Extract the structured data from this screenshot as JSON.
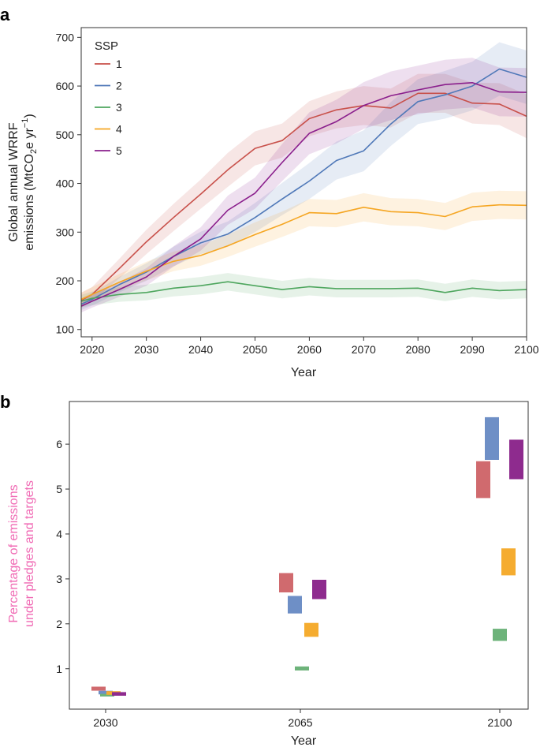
{
  "figure": {
    "panel_a": "a",
    "panel_b": "b"
  },
  "chart_data": [
    {
      "type": "line",
      "panel": "a",
      "title": "",
      "xlabel": "Year",
      "ylabel_line1": "Global annual WRRF",
      "ylabel_line2_pre": "emissions (MtCO",
      "ylabel_sub": "2",
      "ylabel_line2_mid": "e yr",
      "ylabel_sup": "−1",
      "ylabel_line2_post": ")",
      "xlim": [
        2018,
        2100
      ],
      "ylim": [
        85,
        720
      ],
      "xticks": [
        2020,
        2030,
        2040,
        2050,
        2060,
        2070,
        2080,
        2090,
        2100
      ],
      "yticks": [
        100,
        200,
        300,
        400,
        500,
        600,
        700
      ],
      "legend": {
        "title": "SSP",
        "placement": "top-left"
      },
      "x": [
        2018,
        2020,
        2025,
        2030,
        2035,
        2040,
        2045,
        2050,
        2055,
        2060,
        2065,
        2070,
        2075,
        2080,
        2085,
        2090,
        2095,
        2100
      ],
      "series": [
        {
          "name": "1",
          "color": "#c8504a",
          "values": [
            160,
            172,
            225,
            280,
            330,
            378,
            428,
            472,
            488,
            533,
            551,
            560,
            555,
            585,
            585,
            565,
            563,
            538
          ],
          "lower": [
            145,
            157,
            205,
            255,
            302,
            348,
            393,
            437,
            453,
            497,
            513,
            520,
            515,
            545,
            545,
            523,
            520,
            493
          ],
          "upper": [
            175,
            187,
            245,
            305,
            358,
            408,
            463,
            507,
            523,
            569,
            589,
            600,
            595,
            625,
            625,
            607,
            606,
            583
          ]
        },
        {
          "name": "2",
          "color": "#4f78b8",
          "values": [
            152,
            162,
            192,
            218,
            250,
            278,
            296,
            330,
            368,
            405,
            447,
            467,
            522,
            568,
            582,
            600,
            635,
            618
          ],
          "lower": [
            140,
            149,
            176,
            200,
            230,
            255,
            270,
            300,
            335,
            368,
            408,
            425,
            477,
            522,
            533,
            550,
            580,
            563
          ],
          "upper": [
            164,
            175,
            208,
            236,
            270,
            301,
            322,
            360,
            401,
            442,
            486,
            509,
            567,
            614,
            631,
            650,
            690,
            673
          ]
        },
        {
          "name": "3",
          "color": "#4ea65e",
          "values": [
            158,
            164,
            172,
            176,
            185,
            190,
            198,
            190,
            182,
            188,
            184,
            184,
            184,
            185,
            176,
            185,
            180,
            182
          ],
          "lower": [
            145,
            150,
            157,
            160,
            168,
            172,
            180,
            172,
            164,
            170,
            166,
            166,
            166,
            167,
            158,
            167,
            162,
            164
          ],
          "upper": [
            171,
            178,
            187,
            192,
            202,
            208,
            216,
            208,
            200,
            206,
            202,
            202,
            202,
            203,
            194,
            203,
            198,
            200
          ]
        },
        {
          "name": "4",
          "color": "#f5a623",
          "values": [
            162,
            172,
            197,
            220,
            240,
            252,
            272,
            295,
            316,
            340,
            338,
            351,
            342,
            340,
            332,
            352,
            356,
            355
          ],
          "lower": [
            148,
            157,
            180,
            201,
            220,
            231,
            249,
            270,
            290,
            312,
            310,
            322,
            314,
            312,
            304,
            323,
            327,
            326
          ],
          "upper": [
            176,
            187,
            214,
            239,
            260,
            273,
            295,
            320,
            342,
            368,
            366,
            380,
            370,
            368,
            360,
            381,
            385,
            384
          ]
        },
        {
          "name": "5",
          "color": "#8a1e8c",
          "values": [
            148,
            158,
            182,
            208,
            250,
            286,
            345,
            380,
            443,
            503,
            527,
            560,
            580,
            592,
            603,
            607,
            588,
            587
          ],
          "lower": [
            135,
            145,
            167,
            190,
            229,
            262,
            315,
            348,
            405,
            460,
            482,
            512,
            530,
            542,
            552,
            556,
            538,
            537
          ],
          "upper": [
            161,
            171,
            197,
            226,
            271,
            310,
            375,
            412,
            481,
            546,
            572,
            608,
            630,
            642,
            654,
            658,
            638,
            637
          ]
        }
      ]
    },
    {
      "type": "floating-bar",
      "panel": "b",
      "xlabel": "Year",
      "ylabel_line1": "Percentage of emissions",
      "ylabel_line2": "under pledges and targets",
      "ylabel_color": "#f06ab4",
      "categories": [
        "2030",
        "2065",
        "2100"
      ],
      "ylim": [
        0.1,
        6.95
      ],
      "yticks": [
        1,
        2,
        3,
        4,
        5,
        6
      ],
      "series": [
        {
          "name": "1",
          "color": "#d06a6e",
          "ranges": [
            [
              0.51,
              0.6
            ],
            [
              2.7,
              3.13
            ],
            [
              4.8,
              5.62
            ]
          ]
        },
        {
          "name": "2",
          "color": "#6e8fc6",
          "ranges": [
            [
              0.43,
              0.51
            ],
            [
              2.23,
              2.62
            ],
            [
              5.65,
              6.6
            ]
          ]
        },
        {
          "name": "3",
          "color": "#6db37a",
          "ranges": [
            [
              0.38,
              0.44
            ],
            [
              0.96,
              1.05
            ],
            [
              1.62,
              1.89
            ]
          ]
        },
        {
          "name": "4",
          "color": "#f5ac30",
          "ranges": [
            [
              0.42,
              0.5
            ],
            [
              1.71,
              2.02
            ],
            [
              3.08,
              3.68
            ]
          ]
        },
        {
          "name": "5",
          "color": "#8e2b8e",
          "ranges": [
            [
              0.4,
              0.48
            ],
            [
              2.55,
              2.98
            ],
            [
              5.22,
              6.1
            ]
          ]
        }
      ]
    }
  ]
}
